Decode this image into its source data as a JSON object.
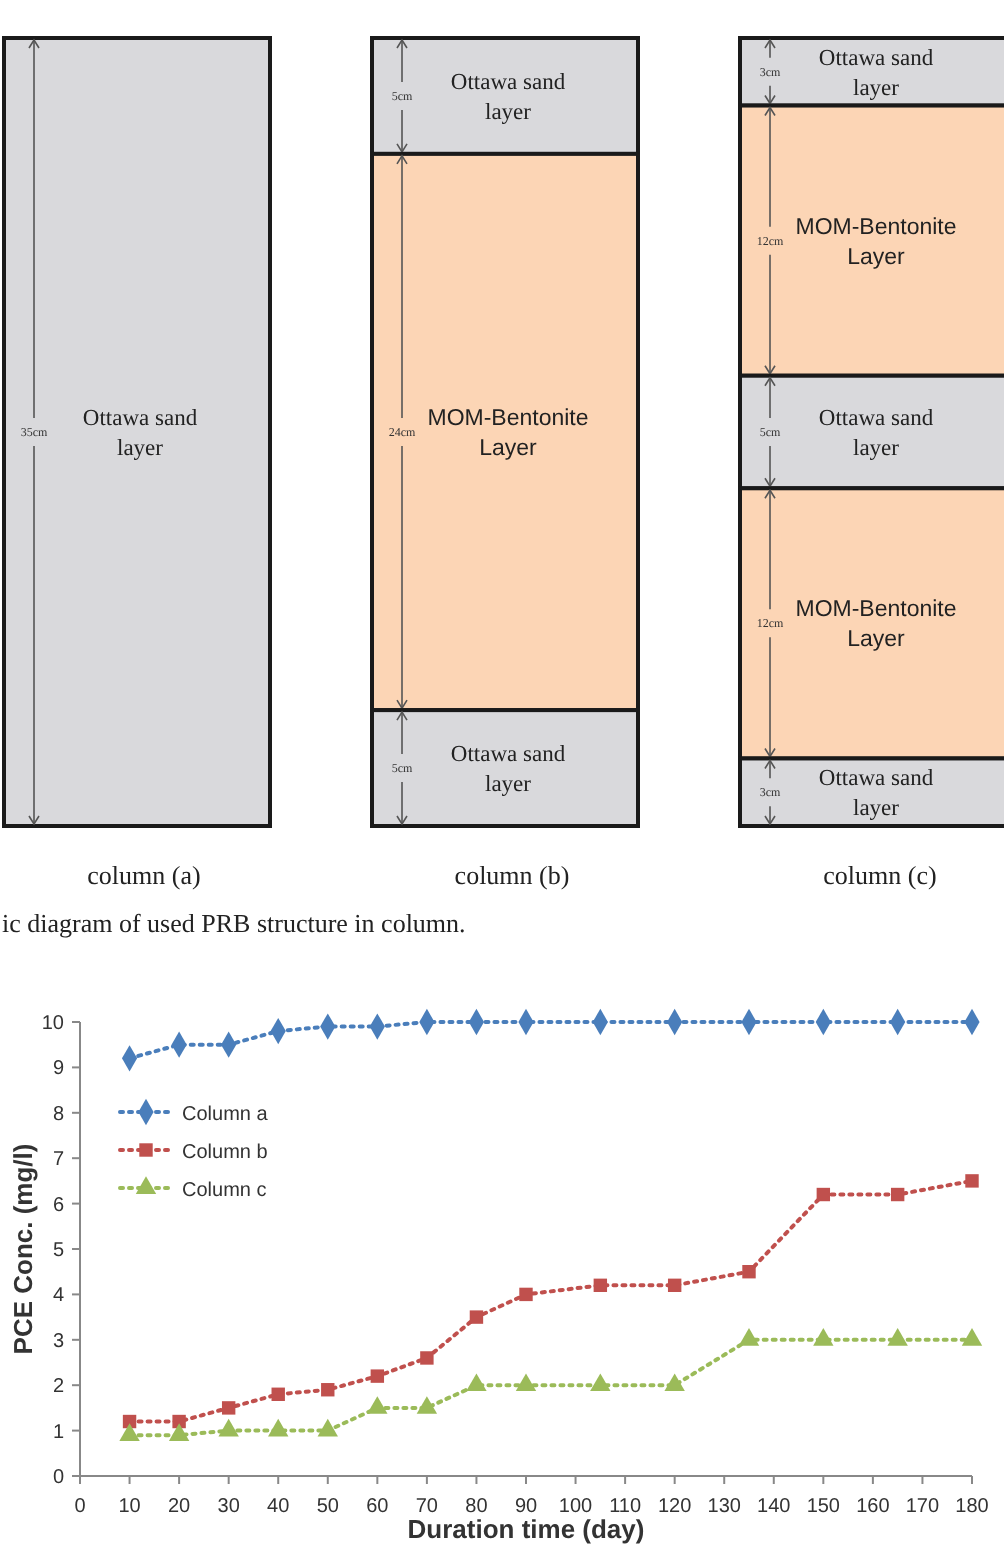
{
  "chart_data": [
    {
      "type": "other",
      "categories": [
        "column  (a)",
        "column  (b)",
        "column  (c)"
      ],
      "series": [
        {
          "name": "Ottawa sand layer",
          "color": "#d9d9dc",
          "values": [
            35,
            5,
            3
          ],
          "value_labels": [
            "35cm",
            "5cm",
            "3cm"
          ]
        },
        {
          "name": "MOM-Bentonite Layer",
          "color": "#fcd5b5",
          "values": [
            null,
            24,
            12
          ],
          "value_labels": [
            null,
            "24cm",
            "12cm"
          ]
        },
        {
          "name": "Ottawa sand layer",
          "color": "#d9d9dc",
          "values": [
            null,
            5,
            5
          ],
          "value_labels": [
            null,
            "5cm",
            "5cm"
          ]
        },
        {
          "name": "MOM-Bentonite Layer",
          "color": "#fcd5b5",
          "values": [
            null,
            null,
            12
          ],
          "value_labels": [
            null,
            null,
            "12cm"
          ]
        },
        {
          "name": "Ottawa sand layer",
          "color": "#d9d9dc",
          "values": [
            null,
            null,
            3
          ],
          "value_labels": [
            null,
            null,
            "3cm"
          ]
        }
      ],
      "annotations": [
        "ic diagram of used PRB structure in column."
      ]
    },
    {
      "type": "line",
      "xlabel": "Duration time (day)",
      "ylabel": "PCE Conc. (mg/l)",
      "x": [
        10,
        20,
        30,
        40,
        50,
        60,
        70,
        80,
        90,
        105,
        120,
        135,
        150,
        165,
        180
      ],
      "xlim": [
        0,
        180
      ],
      "xticks": [
        0,
        10,
        20,
        30,
        40,
        50,
        60,
        70,
        80,
        90,
        100,
        110,
        120,
        130,
        140,
        150,
        160,
        170,
        180
      ],
      "ylim": [
        0,
        10
      ],
      "yticks": [
        0,
        1,
        2,
        3,
        4,
        5,
        6,
        7,
        8,
        9,
        10
      ],
      "line_style": "dotted",
      "legend": "top left",
      "series": [
        {
          "name": "Column a",
          "color": "#4a7ebb",
          "marker": "diamond",
          "values": [
            9.2,
            9.5,
            9.5,
            9.8,
            9.9,
            9.9,
            10,
            10,
            10,
            10,
            10,
            10,
            10,
            10,
            10
          ]
        },
        {
          "name": "Column b",
          "color": "#c0504d",
          "marker": "square",
          "values": [
            1.2,
            1.2,
            1.5,
            1.8,
            1.9,
            2.2,
            2.6,
            3.5,
            4.0,
            4.2,
            4.2,
            4.5,
            6.2,
            6.2,
            6.5
          ]
        },
        {
          "name": "Column c",
          "color": "#9bbb59",
          "marker": "triangle",
          "values": [
            0.9,
            0.9,
            1.0,
            1.0,
            1.0,
            1.5,
            1.5,
            2.0,
            2.0,
            2.0,
            2.0,
            3.0,
            3.0,
            3.0,
            3.0
          ]
        }
      ]
    }
  ]
}
